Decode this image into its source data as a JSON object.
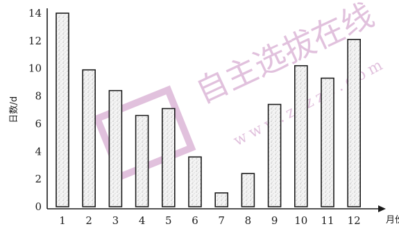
{
  "chart_data": {
    "type": "bar",
    "categories": [
      "1",
      "2",
      "3",
      "4",
      "5",
      "6",
      "7",
      "8",
      "9",
      "10",
      "11",
      "12"
    ],
    "values": [
      14,
      9.9,
      8.4,
      6.6,
      7.1,
      3.6,
      1.0,
      2.4,
      7.4,
      10.2,
      9.3,
      12.1
    ],
    "xlabel": "月份",
    "ylabel": "日数/d",
    "ylim": [
      0,
      14
    ],
    "yticks": [
      "0",
      "2",
      "4",
      "6",
      "8",
      "10",
      "12",
      "14"
    ],
    "grid": false,
    "legend": "none"
  },
  "watermark": {
    "text": "自主选拔在线",
    "url": "www.zizzs.com",
    "color": "#d9a6cf"
  }
}
